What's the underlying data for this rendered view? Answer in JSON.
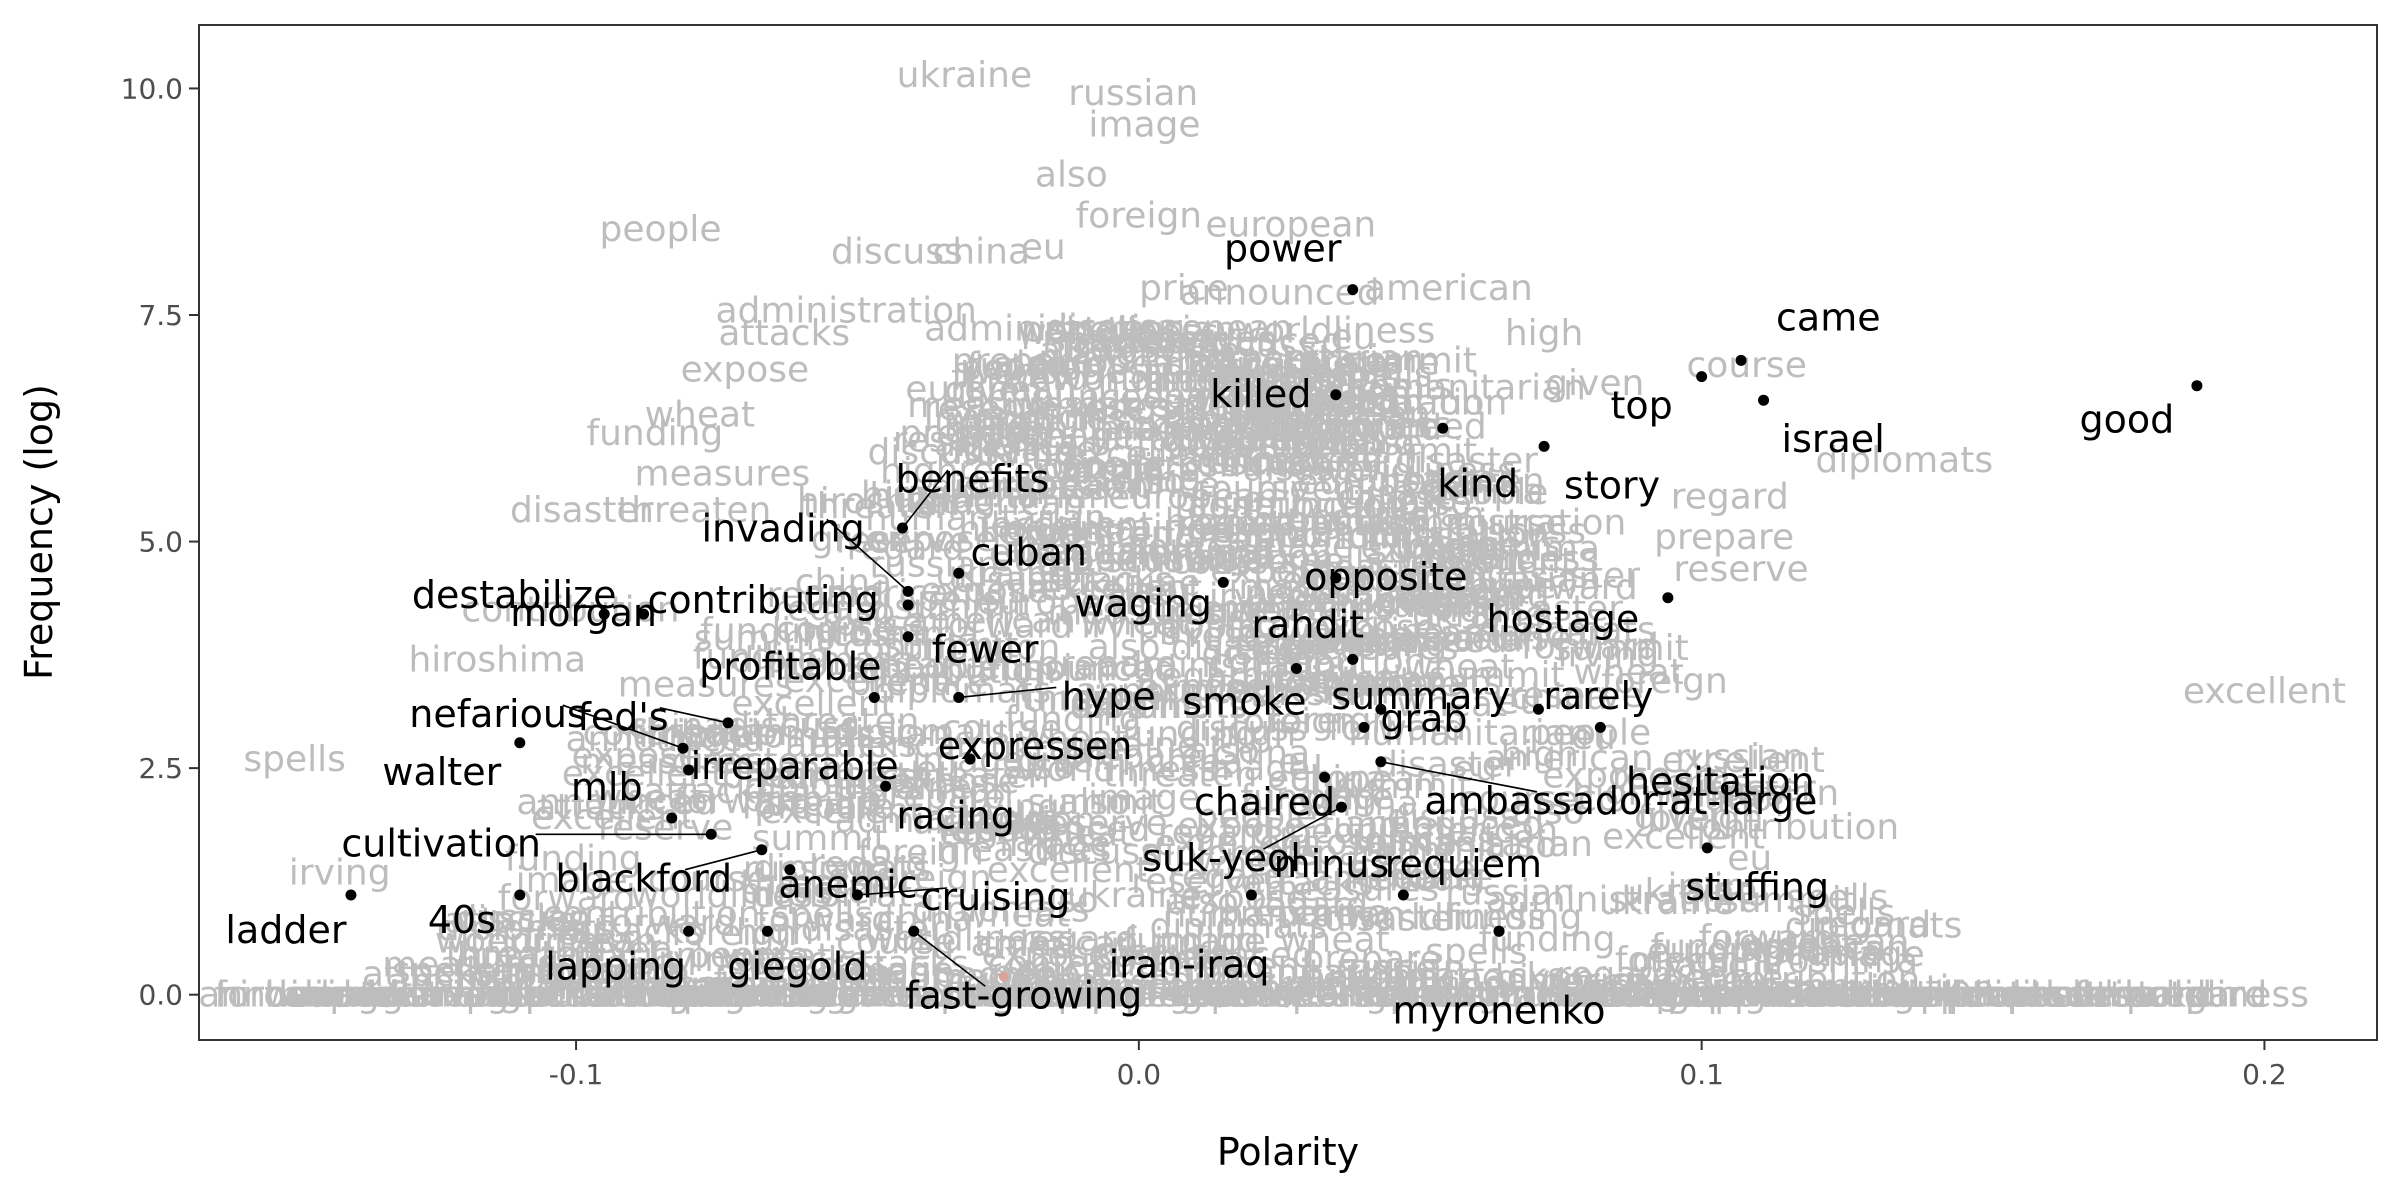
{
  "chart_data": {
    "type": "scatter",
    "title": "",
    "xlabel": "Polarity",
    "ylabel": "Frequency (log)",
    "xlim": [
      -0.167,
      0.22
    ],
    "ylim": [
      -0.5,
      10.7
    ],
    "x_ticks": [
      -0.1,
      0.0,
      0.1,
      0.2
    ],
    "x_tick_labels": [
      "-0.1",
      "0.0",
      "0.1",
      "0.2"
    ],
    "y_ticks": [
      0,
      2.5,
      5.0,
      7.5,
      10.0
    ],
    "y_tick_labels": [
      "0.0",
      "2.5",
      "5.0",
      "7.5",
      "10.0"
    ],
    "grid": false,
    "colors": {
      "highlight": "#000000",
      "background_words": "#bdbdbd",
      "center_point": "#d9a49a",
      "connector": "#000000"
    },
    "highlighted_points": [
      {
        "label": "good",
        "x": 0.188,
        "y": 6.72
      },
      {
        "label": "came",
        "x": 0.107,
        "y": 7.0
      },
      {
        "label": "top",
        "x": 0.1,
        "y": 6.82
      },
      {
        "label": "israel",
        "x": 0.111,
        "y": 6.56
      },
      {
        "label": "power",
        "x": 0.038,
        "y": 7.78
      },
      {
        "label": "killed",
        "x": 0.035,
        "y": 6.62
      },
      {
        "label": "kind",
        "x": 0.054,
        "y": 6.25
      },
      {
        "label": "story",
        "x": 0.072,
        "y": 6.05
      },
      {
        "label": "opposite",
        "x": 0.035,
        "y": 4.6
      },
      {
        "label": "waging",
        "x": 0.015,
        "y": 4.55
      },
      {
        "label": "rahdit",
        "x": 0.038,
        "y": 3.7
      },
      {
        "label": "hostage",
        "x": 0.094,
        "y": 4.38
      },
      {
        "label": "summary",
        "x": 0.043,
        "y": 3.15
      },
      {
        "label": "rarely",
        "x": 0.071,
        "y": 3.15
      },
      {
        "label": "smoke",
        "x": 0.028,
        "y": 3.6
      },
      {
        "label": "grab",
        "x": 0.04,
        "y": 2.95
      },
      {
        "label": "hesitation",
        "x": 0.082,
        "y": 2.95
      },
      {
        "label": "chaired",
        "x": 0.033,
        "y": 2.4
      },
      {
        "label": "suk-yeol",
        "x": 0.036,
        "y": 2.07
      },
      {
        "label": "ambassador-at-large",
        "x": 0.043,
        "y": 2.57
      },
      {
        "label": "minus",
        "x": 0.02,
        "y": 1.1
      },
      {
        "label": "requiem",
        "x": 0.047,
        "y": 1.1
      },
      {
        "label": "stuffing",
        "x": 0.101,
        "y": 1.62
      },
      {
        "label": "iran-iraq",
        "x": 0.064,
        "y": 0.7
      },
      {
        "label": "myronenko",
        "x": 0.064,
        "y": 0.7
      },
      {
        "label": "benefits",
        "x": -0.042,
        "y": 5.15
      },
      {
        "label": "invading",
        "x": -0.041,
        "y": 4.45
      },
      {
        "label": "contributing",
        "x": -0.041,
        "y": 4.3
      },
      {
        "label": "cuban",
        "x": -0.032,
        "y": 4.65
      },
      {
        "label": "fewer",
        "x": -0.041,
        "y": 3.95
      },
      {
        "label": "destabilize",
        "x": -0.095,
        "y": 4.2
      },
      {
        "label": "morgan",
        "x": -0.088,
        "y": 4.2
      },
      {
        "label": "profitable",
        "x": -0.047,
        "y": 3.28
      },
      {
        "label": "hype",
        "x": -0.032,
        "y": 3.28
      },
      {
        "label": "fed's",
        "x": -0.073,
        "y": 3.0
      },
      {
        "label": "nefarious",
        "x": -0.081,
        "y": 2.72
      },
      {
        "label": "irreparable",
        "x": -0.08,
        "y": 2.48
      },
      {
        "label": "expressen",
        "x": -0.03,
        "y": 2.6
      },
      {
        "label": "walter",
        "x": -0.11,
        "y": 2.78
      },
      {
        "label": "mlb",
        "x": -0.083,
        "y": 1.95
      },
      {
        "label": "racing",
        "x": -0.045,
        "y": 2.3
      },
      {
        "label": "cultivation",
        "x": -0.076,
        "y": 1.77
      },
      {
        "label": "anemic",
        "x": -0.062,
        "y": 1.38
      },
      {
        "label": "blackford",
        "x": -0.067,
        "y": 1.6
      },
      {
        "label": "cruising",
        "x": -0.05,
        "y": 1.1
      },
      {
        "label": "ladder",
        "x": -0.14,
        "y": 1.1
      },
      {
        "label": "40s",
        "x": -0.11,
        "y": 1.1
      },
      {
        "label": "lapping",
        "x": -0.08,
        "y": 0.7
      },
      {
        "label": "giegold",
        "x": -0.066,
        "y": 0.7
      },
      {
        "label": "fast-growing",
        "x": -0.04,
        "y": 0.7
      }
    ],
    "background_words": [
      {
        "label": "ukraine",
        "x": -0.031,
        "y": 10.15
      },
      {
        "label": "russian",
        "x": -0.001,
        "y": 9.95
      },
      {
        "label": "image",
        "x": 0.001,
        "y": 9.6
      },
      {
        "label": "also",
        "x": -0.012,
        "y": 9.05
      },
      {
        "label": "foreign",
        "x": 0.0,
        "y": 8.6
      },
      {
        "label": "people",
        "x": -0.085,
        "y": 8.45
      },
      {
        "label": "european",
        "x": 0.027,
        "y": 8.5
      },
      {
        "label": "discuss",
        "x": -0.043,
        "y": 8.2
      },
      {
        "label": "china",
        "x": -0.028,
        "y": 8.2
      },
      {
        "label": "eu",
        "x": -0.017,
        "y": 8.25
      },
      {
        "label": "american",
        "x": 0.055,
        "y": 7.8
      },
      {
        "label": "announced",
        "x": 0.025,
        "y": 7.75
      },
      {
        "label": "price",
        "x": 0.008,
        "y": 7.8
      },
      {
        "label": "high",
        "x": 0.072,
        "y": 7.3
      },
      {
        "label": "administration",
        "x": -0.052,
        "y": 7.55
      },
      {
        "label": "attacks",
        "x": -0.063,
        "y": 7.3
      },
      {
        "label": "summit",
        "x": 0.048,
        "y": 7.0
      },
      {
        "label": "course",
        "x": 0.108,
        "y": 6.95
      },
      {
        "label": "expose",
        "x": -0.07,
        "y": 6.9
      },
      {
        "label": "humanitarian",
        "x": 0.058,
        "y": 6.7
      },
      {
        "label": "given",
        "x": 0.081,
        "y": 6.75
      },
      {
        "label": "wheat",
        "x": -0.078,
        "y": 6.4
      },
      {
        "label": "funding",
        "x": -0.086,
        "y": 6.2
      },
      {
        "label": "diplomats",
        "x": 0.136,
        "y": 5.9
      },
      {
        "label": "measures",
        "x": -0.074,
        "y": 5.75
      },
      {
        "label": "regard",
        "x": 0.105,
        "y": 5.5
      },
      {
        "label": "disaster",
        "x": -0.099,
        "y": 5.35
      },
      {
        "label": "threaten",
        "x": -0.079,
        "y": 5.35
      },
      {
        "label": "prepare",
        "x": 0.104,
        "y": 5.05
      },
      {
        "label": "reserve",
        "x": 0.107,
        "y": 4.7
      },
      {
        "label": "excellent",
        "x": 0.2,
        "y": 3.35
      },
      {
        "label": "contribution",
        "x": -0.101,
        "y": 4.25
      },
      {
        "label": "hiroshima",
        "x": -0.114,
        "y": 3.7
      },
      {
        "label": "spells",
        "x": -0.15,
        "y": 2.6
      },
      {
        "label": "irving",
        "x": -0.142,
        "y": 1.35
      },
      {
        "label": "forward",
        "x": -0.152,
        "y": 0.0
      },
      {
        "label": "worldliness",
        "x": 0.19,
        "y": 0.0
      }
    ],
    "center_point": {
      "x": -0.024,
      "y": 0.2
    }
  }
}
